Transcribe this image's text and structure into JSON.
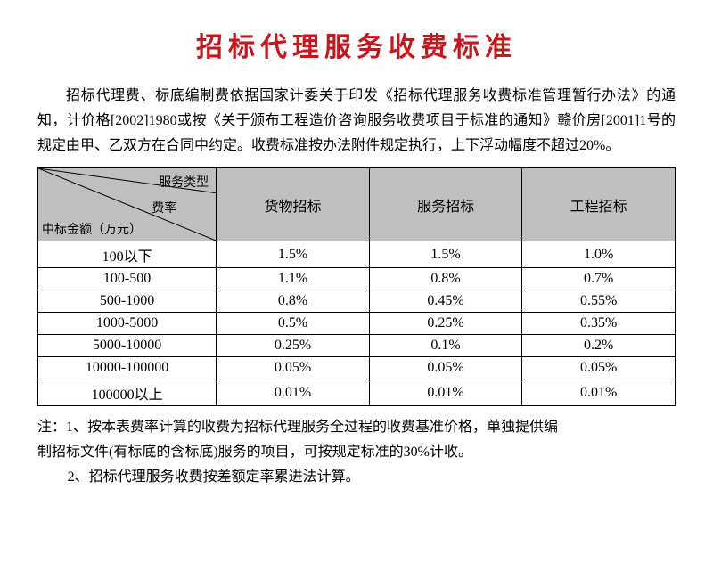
{
  "title": "招标代理服务收费标准",
  "intro": "招标代理费、标底编制费依据国家计委关于印发《招标代理服务收费标准管理暂行办法》的通知，计价格[2002]1980或按《关于颁布工程造价咨询服务收费项目于标准的通知》赣价房[2001]1号的规定由甲、乙双方在合同中约定。收费标准按办法附件规定执行，上下浮动幅度不超过20%。",
  "table": {
    "diag": {
      "top": "服务类型",
      "mid": "费率",
      "bot": "中标金额（万元）"
    },
    "headers": [
      "货物招标",
      "服务招标",
      "工程招标"
    ],
    "rows": [
      {
        "range": "100以下",
        "vals": [
          "1.5%",
          "1.5%",
          "1.0%"
        ]
      },
      {
        "range": "100-500",
        "vals": [
          "1.1%",
          "0.8%",
          "0.7%"
        ]
      },
      {
        "range": "500-1000",
        "vals": [
          "0.8%",
          "0.45%",
          "0.55%"
        ]
      },
      {
        "range": "1000-5000",
        "vals": [
          "0.5%",
          "0.25%",
          "0.35%"
        ]
      },
      {
        "range": "5000-10000",
        "vals": [
          "0.25%",
          "0.1%",
          "0.2%"
        ]
      },
      {
        "range": "10000-100000",
        "vals": [
          "0.05%",
          "0.05%",
          "0.05%"
        ]
      },
      {
        "range": "100000以上",
        "vals": [
          "0.01%",
          "0.01%",
          "0.01%"
        ]
      }
    ],
    "col0_width": "28%",
    "header_bg": "#bfbfbf",
    "border_color": "#000000"
  },
  "notes": {
    "line1a": "注：1、按本表费率计算的收费为招标代理服务全过程的收费基准价格，单独提供编",
    "line1b": "制招标文件(有标底的含标底)服务的项目，可按规定标准的30%计收。",
    "line2": "2、招标代理服务收费按差额定率累进法计算。"
  },
  "colors": {
    "title": "#c8161d",
    "text": "#000000",
    "background": "#ffffff"
  }
}
